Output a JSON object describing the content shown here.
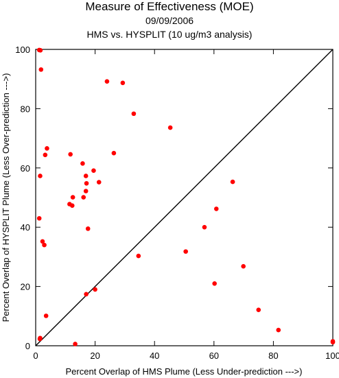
{
  "chart_data": {
    "type": "scatter",
    "title": "Measure of Effectiveness (MOE)",
    "subtitle_date": "09/09/2006",
    "subtitle_analysis": "HMS vs. HYSPLIT  (10 ug/m3 analysis)",
    "xlabel": "Percent Overlap of HMS Plume (Less Under-prediction --->)",
    "ylabel": "Percent Overlap of HYSPLIT Plume (Less Over-prediction --->)",
    "xlim": [
      0,
      100
    ],
    "ylim": [
      0,
      100
    ],
    "x_ticks": [
      "0",
      "20",
      "40",
      "60",
      "80",
      "100"
    ],
    "y_ticks": [
      "0",
      "20",
      "40",
      "60",
      "80",
      "100"
    ],
    "grid": false,
    "diagonal_line": true,
    "point_color": "#ff0000",
    "points": [
      {
        "x": 1.2,
        "y": 99.8
      },
      {
        "x": 1.6,
        "y": 99.7
      },
      {
        "x": 1.8,
        "y": 93.2
      },
      {
        "x": 24.0,
        "y": 89.2
      },
      {
        "x": 29.3,
        "y": 88.7
      },
      {
        "x": 33.0,
        "y": 78.3
      },
      {
        "x": 45.3,
        "y": 73.6
      },
      {
        "x": 3.8,
        "y": 66.6
      },
      {
        "x": 26.3,
        "y": 65.0
      },
      {
        "x": 11.7,
        "y": 64.6
      },
      {
        "x": 3.2,
        "y": 64.4
      },
      {
        "x": 15.8,
        "y": 61.5
      },
      {
        "x": 19.5,
        "y": 59.1
      },
      {
        "x": 1.5,
        "y": 57.3
      },
      {
        "x": 16.9,
        "y": 57.3
      },
      {
        "x": 21.3,
        "y": 55.2
      },
      {
        "x": 66.3,
        "y": 55.3
      },
      {
        "x": 17.1,
        "y": 54.8
      },
      {
        "x": 16.9,
        "y": 52.2
      },
      {
        "x": 12.5,
        "y": 50.1
      },
      {
        "x": 16.1,
        "y": 50.1
      },
      {
        "x": 11.4,
        "y": 47.8
      },
      {
        "x": 12.3,
        "y": 47.3
      },
      {
        "x": 60.8,
        "y": 46.2
      },
      {
        "x": 1.2,
        "y": 43.0
      },
      {
        "x": 17.6,
        "y": 39.5
      },
      {
        "x": 56.8,
        "y": 40.0
      },
      {
        "x": 2.3,
        "y": 35.2
      },
      {
        "x": 2.9,
        "y": 34.0
      },
      {
        "x": 50.5,
        "y": 31.8
      },
      {
        "x": 34.6,
        "y": 30.3
      },
      {
        "x": 69.9,
        "y": 26.8
      },
      {
        "x": 60.2,
        "y": 21.0
      },
      {
        "x": 20.0,
        "y": 19.0
      },
      {
        "x": 17.0,
        "y": 17.4
      },
      {
        "x": 75.0,
        "y": 12.1
      },
      {
        "x": 3.5,
        "y": 10.1
      },
      {
        "x": 81.7,
        "y": 5.3
      },
      {
        "x": 1.5,
        "y": 2.6
      },
      {
        "x": 1.4,
        "y": 2.3
      },
      {
        "x": 13.3,
        "y": 0.6
      },
      {
        "x": 100.0,
        "y": 1.5
      },
      {
        "x": 100.0,
        "y": 1.2
      }
    ]
  }
}
